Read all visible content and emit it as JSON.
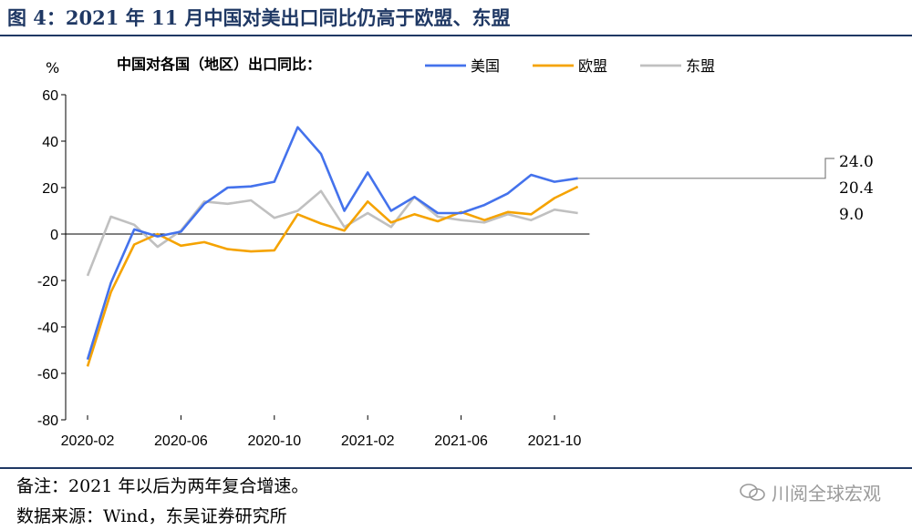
{
  "figure_title": "图 4：2021 年 11 月中国对美出口同比仍高于欧盟、东盟",
  "note": "备注：2021 年以后为两年复合增速。",
  "source": "数据来源：Wind，东吴证券研究所",
  "watermark": "川阅全球宏观",
  "chart_data": {
    "type": "line",
    "subtitle": "中国对各国（地区）出口同比：",
    "ylabel": "%",
    "ylim": [
      -80,
      60
    ],
    "yticks": [
      -80,
      -60,
      -40,
      -20,
      0,
      20,
      40,
      60
    ],
    "xtick_labels": [
      "2020-02",
      "2020-06",
      "2020-10",
      "2021-02",
      "2021-06",
      "2021-10"
    ],
    "x": [
      "2020-02",
      "2020-03",
      "2020-04",
      "2020-05",
      "2020-06",
      "2020-07",
      "2020-08",
      "2020-09",
      "2020-10",
      "2020-11",
      "2020-12",
      "2021-01",
      "2021-02",
      "2021-03",
      "2021-04",
      "2021-05",
      "2021-06",
      "2021-07",
      "2021-08",
      "2021-09",
      "2021-10",
      "2021-11"
    ],
    "legend_position": "top",
    "series": [
      {
        "name": "美国",
        "color": "#4472ec",
        "values": [
          -54,
          -21,
          2,
          -1,
          1,
          13,
          20,
          20.5,
          22.5,
          46,
          34.5,
          10,
          26.5,
          10,
          16,
          9,
          9,
          12.5,
          17.5,
          25.5,
          22.5,
          24.0
        ]
      },
      {
        "name": "欧盟",
        "color": "#f5a300",
        "values": [
          -57,
          -25,
          -4.5,
          0,
          -5,
          -3.5,
          -6.5,
          -7.5,
          -7,
          8.5,
          4.5,
          1.5,
          14,
          5,
          8.5,
          5.5,
          9.5,
          6,
          9.5,
          8.5,
          15.5,
          20.4
        ]
      },
      {
        "name": "东盟",
        "color": "#c0c0c0",
        "values": [
          -18,
          7.5,
          4,
          -5.5,
          1.5,
          14,
          13,
          14.5,
          7,
          10,
          18.5,
          3,
          9,
          3,
          16,
          7.5,
          6,
          5,
          8.5,
          6,
          10.5,
          9.0
        ]
      }
    ],
    "end_labels": [
      "24.0",
      "20.4",
      "9.0"
    ]
  }
}
